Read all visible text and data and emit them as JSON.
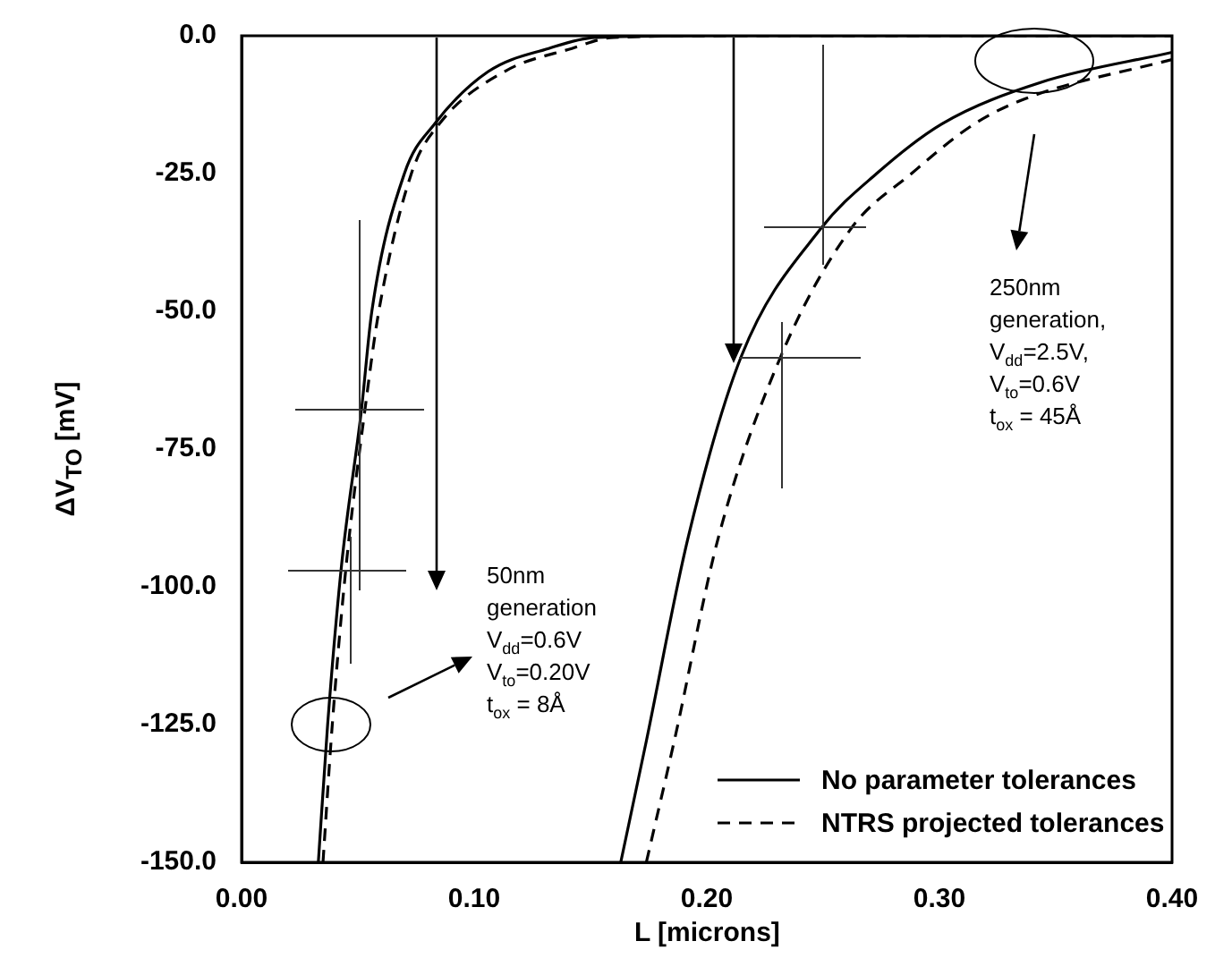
{
  "chart_data": {
    "type": "line",
    "xlabel": "L [microns]",
    "ylabel": "ΔV$_{TO}$ [mV]",
    "xlim": [
      0,
      0.4
    ],
    "ylim": [
      -150,
      0
    ],
    "xticks": [
      {
        "value": 0,
        "label": "0.00"
      },
      {
        "value": 0.1,
        "label": "0.10"
      },
      {
        "value": 0.2,
        "label": "0.20"
      },
      {
        "value": 0.3,
        "label": "0.30"
      },
      {
        "value": 0.4,
        "label": "0.40"
      }
    ],
    "yticks": [
      {
        "value": 0,
        "label": "0.0"
      },
      {
        "value": -25,
        "label": "-25.0"
      },
      {
        "value": -50,
        "label": "-50.0"
      },
      {
        "value": -75,
        "label": "-75.0"
      },
      {
        "value": -100,
        "label": "-100.0"
      },
      {
        "value": -125,
        "label": "-125.0"
      },
      {
        "value": -150,
        "label": "-150.0"
      }
    ],
    "series": [
      {
        "name": "No parameter tolerances",
        "color": "#000000",
        "line_style": "solid",
        "x": [
          0.033,
          0.037,
          0.043,
          0.0515,
          0.056,
          0.07,
          0.083,
          0.106,
          0.132,
          0.152,
          0.2,
          0.3,
          0.4
        ],
        "values": [
          -150,
          -125,
          -96,
          -68,
          -50,
          -25,
          -16,
          -6.5,
          -2.3,
          -0.3,
          0,
          0,
          0
        ]
      },
      {
        "name": "NTRS projected tolerances",
        "color": "#000000",
        "line_style": "dashed",
        "x": [
          0.035,
          0.039,
          0.045,
          0.053,
          0.059,
          0.073,
          0.085,
          0.113,
          0.142,
          0.16,
          0.22,
          0.3,
          0.4
        ],
        "values": [
          -150,
          -125,
          -96,
          -68,
          -50,
          -25,
          -16,
          -6.5,
          -2.3,
          -0.3,
          0,
          0,
          0
        ]
      },
      {
        "color": "#000000",
        "line_style": "solid",
        "x": [
          0.163,
          0.174,
          0.192,
          0.215,
          0.249,
          0.273,
          0.301,
          0.344,
          0.4
        ],
        "values": [
          -150,
          -128,
          -91,
          -58,
          -35,
          -25,
          -16,
          -8.4,
          -3
        ]
      },
      {
        "color": "#000000",
        "line_style": "dashed",
        "x": [
          0.174,
          0.186,
          0.205,
          0.232,
          0.262,
          0.288,
          0.315,
          0.337,
          0.4
        ],
        "values": [
          -150,
          -128,
          -91,
          -58,
          -35,
          -25,
          -16,
          -11.4,
          -4.3
        ]
      }
    ],
    "annotations": [
      "50nm",
      "generation",
      "V$_{dd}$=0.6V",
      "V$_{to}$=0.20V",
      "t$_{ox}$ = 8Å",
      "250nm",
      "generation,",
      "V$_{dd}$=2.5V,",
      "V$_{to}$=0.6V",
      "t$_{ox}$ = 45Å"
    ],
    "legend": "bottom right",
    "marker": "none",
    "grid": false
  }
}
